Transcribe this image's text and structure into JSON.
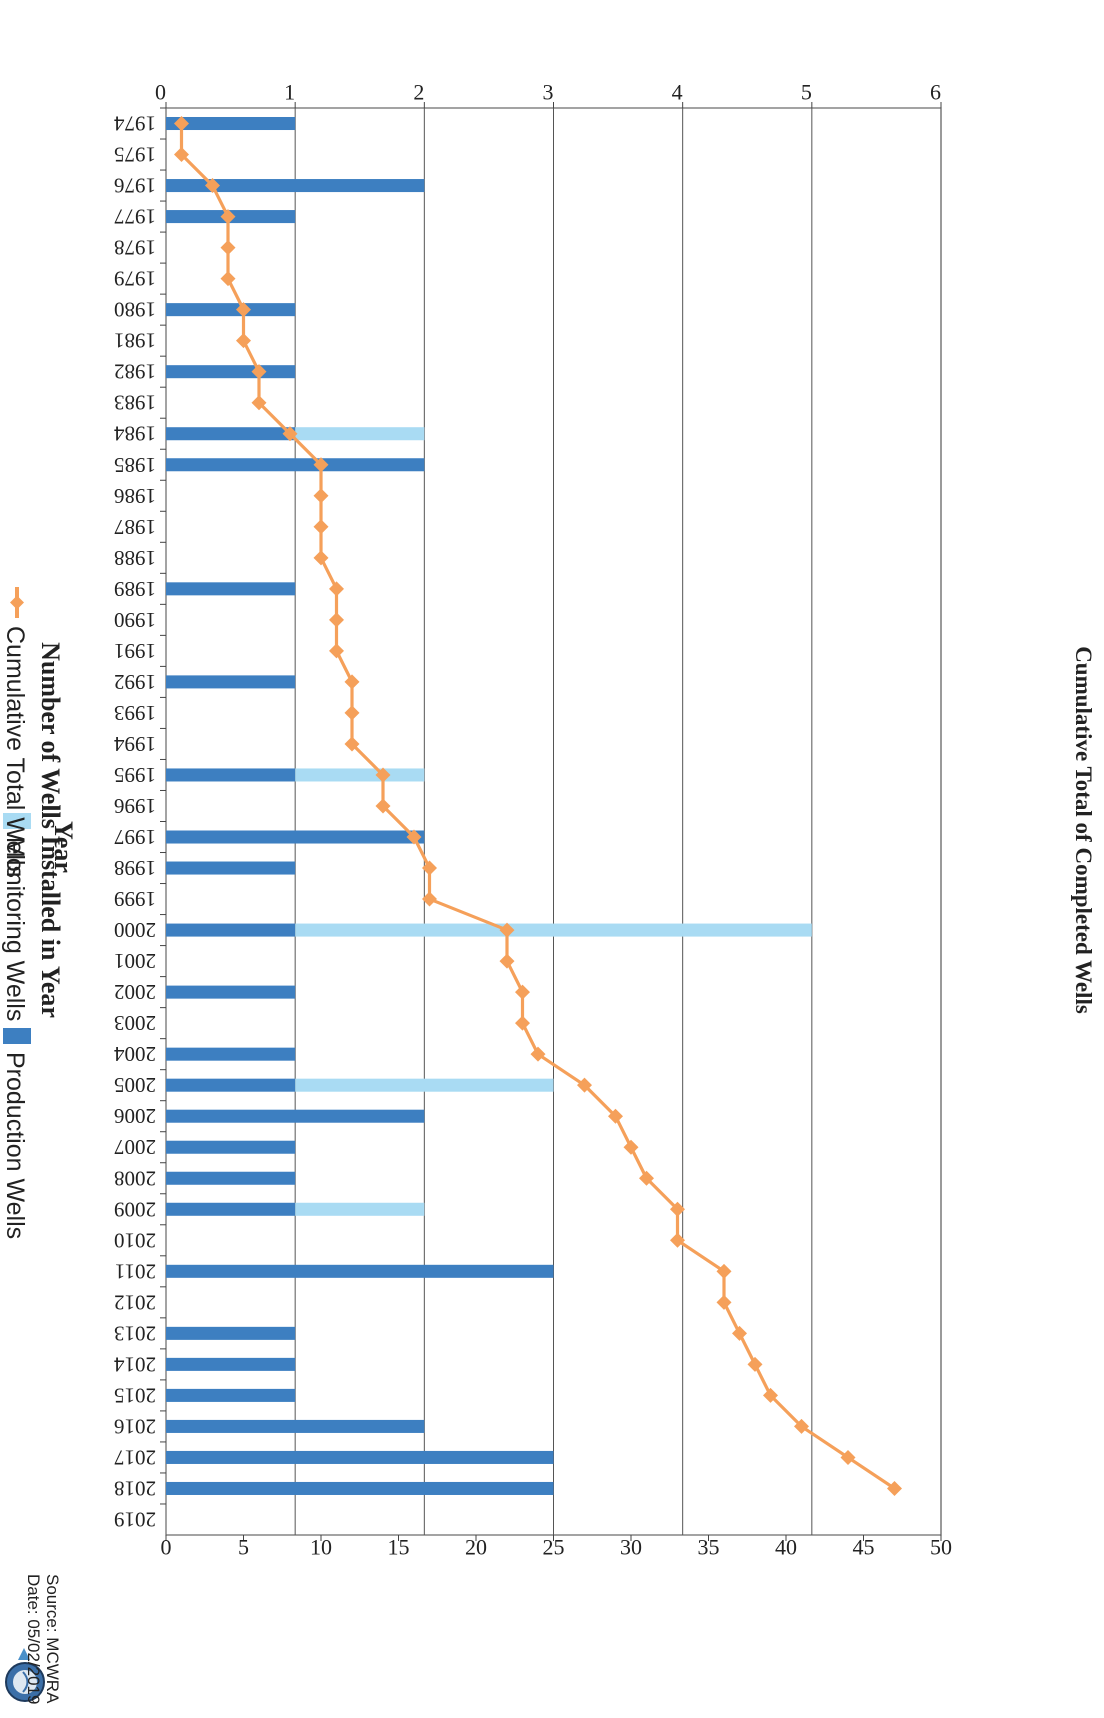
{
  "chart_data": {
    "type": "bar",
    "orientation": "horizontal",
    "x_axis_label": "Year",
    "left_axis_label": "Number of Wells Installed in Year",
    "right_axis_label": "Cumulative Total of Completed Wells",
    "left_axis_range": [
      0,
      6
    ],
    "left_ticks": [
      0,
      1,
      2,
      3,
      4,
      5,
      6
    ],
    "right_axis_range": [
      0,
      50
    ],
    "right_ticks": [
      0,
      5,
      10,
      15,
      20,
      25,
      30,
      35,
      40,
      45,
      50
    ],
    "gridlines": true,
    "legend_placement": "bottom",
    "categories": [
      "1974",
      "1975",
      "1976",
      "1977",
      "1978",
      "1979",
      "1980",
      "1981",
      "1982",
      "1983",
      "1984",
      "1985",
      "1986",
      "1987",
      "1988",
      "1989",
      "1990",
      "1991",
      "1992",
      "1993",
      "1994",
      "1995",
      "1996",
      "1997",
      "1998",
      "1999",
      "2000",
      "2001",
      "2002",
      "2003",
      "2004",
      "2005",
      "2006",
      "2007",
      "2008",
      "2009",
      "2010",
      "2011",
      "2012",
      "2013",
      "2014",
      "2015",
      "2016",
      "2017",
      "2018",
      "2019"
    ],
    "series": [
      {
        "name": "Production Wells",
        "kind": "bar",
        "axis": "left",
        "color": "#3d7fc1",
        "values": [
          1,
          0,
          2,
          1,
          0,
          0,
          1,
          0,
          1,
          0,
          1,
          2,
          0,
          0,
          0,
          1,
          0,
          0,
          1,
          0,
          0,
          1,
          0,
          2,
          1,
          0,
          1,
          0,
          1,
          0,
          1,
          1,
          2,
          1,
          1,
          1,
          0,
          3,
          0,
          1,
          1,
          1,
          2,
          3,
          3,
          0
        ]
      },
      {
        "name": "Monitoring Wells",
        "kind": "bar",
        "axis": "left",
        "color": "#a9dbf3",
        "values": [
          0,
          0,
          0,
          0,
          0,
          0,
          0,
          0,
          0,
          0,
          1,
          0,
          0,
          0,
          0,
          0,
          0,
          0,
          0,
          0,
          0,
          1,
          0,
          0,
          0,
          0,
          4,
          0,
          0,
          0,
          0,
          2,
          0,
          0,
          0,
          1,
          0,
          0,
          0,
          0,
          0,
          0,
          0,
          0,
          0,
          0
        ]
      },
      {
        "name": "Cumulative Total Wells",
        "kind": "line",
        "axis": "right",
        "color": "#f5a05a",
        "values": [
          1,
          1,
          3,
          4,
          4,
          4,
          5,
          5,
          6,
          6,
          8,
          10,
          10,
          10,
          10,
          11,
          11,
          11,
          12,
          12,
          12,
          14,
          14,
          16,
          17,
          17,
          22,
          22,
          23,
          23,
          24,
          27,
          29,
          30,
          31,
          33,
          33,
          36,
          36,
          37,
          38,
          39,
          41,
          44,
          47,
          null
        ]
      }
    ]
  },
  "source": {
    "line1": "Source: MCWRA",
    "line2": "Date: 05/02/2019",
    "logo_icon": "mcwra-seal-icon"
  }
}
